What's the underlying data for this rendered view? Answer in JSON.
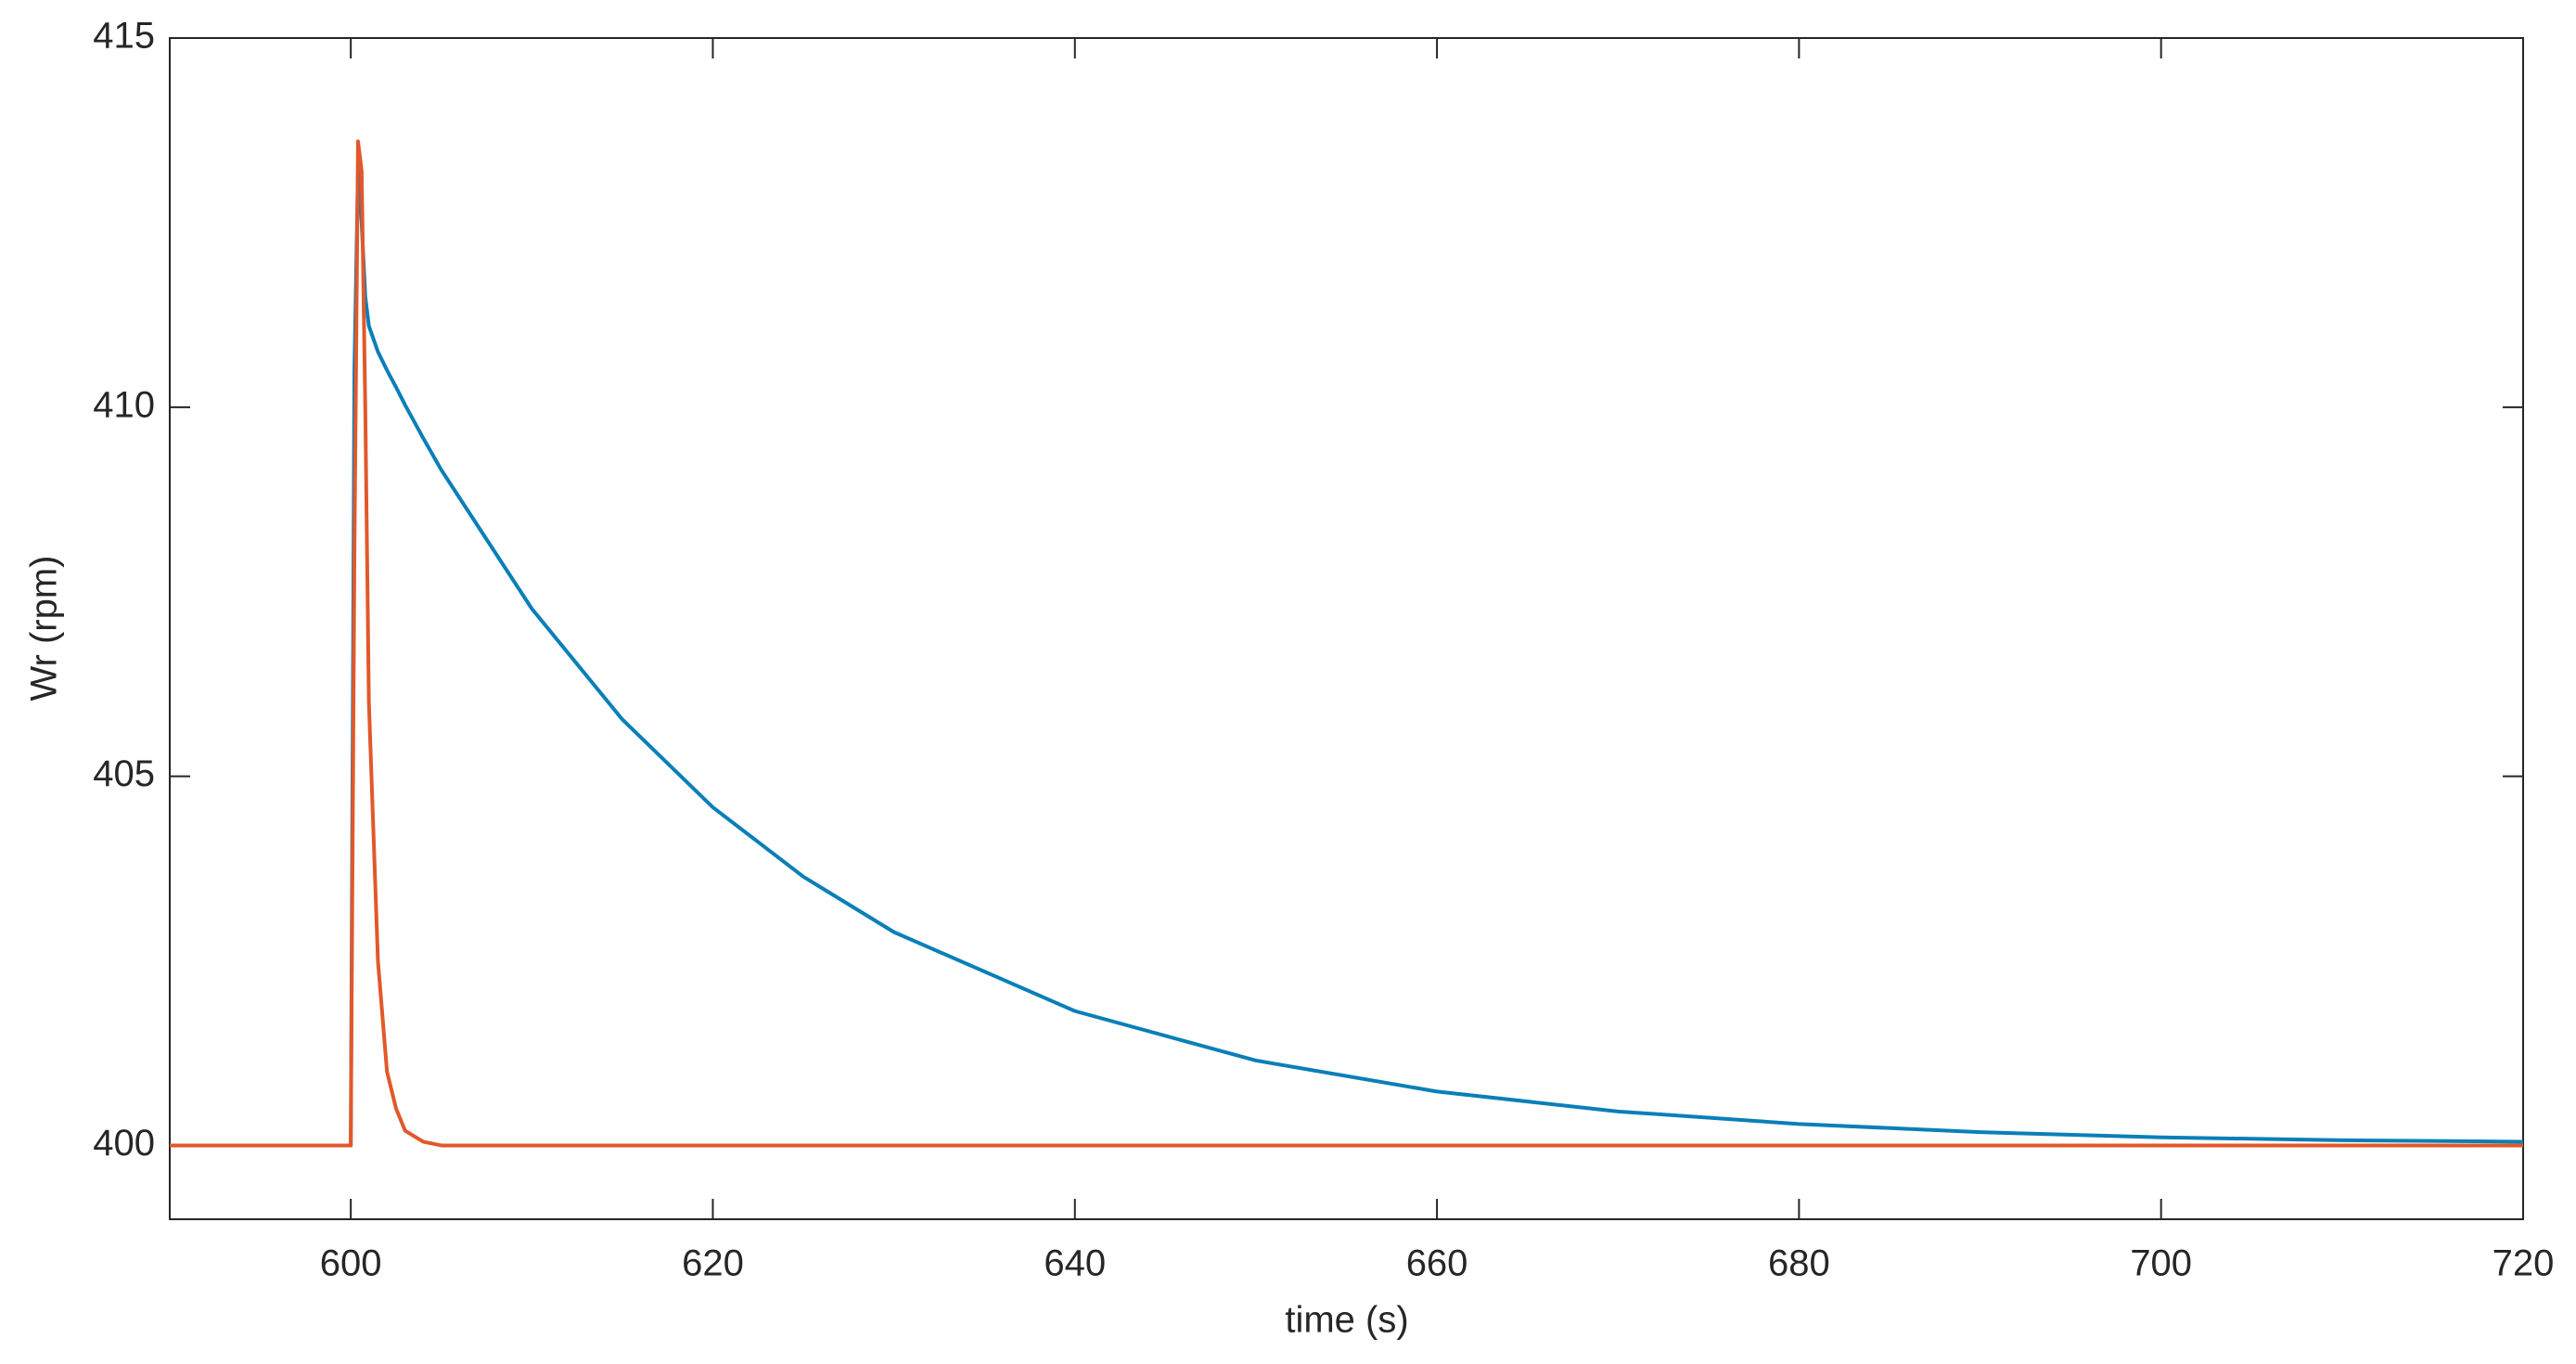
{
  "chart_data": {
    "type": "line",
    "xlabel": "time (s)",
    "ylabel": "Wr (rpm)",
    "x": [
      590,
      600,
      600.2,
      600.4,
      600.6,
      600.8,
      601,
      601.5,
      602,
      602.5,
      603,
      604,
      605,
      610,
      615,
      620,
      625,
      630,
      640,
      650,
      660,
      670,
      680,
      690,
      700,
      710,
      720
    ],
    "series": [
      {
        "color": "#0a7fb8",
        "values": [
          400,
          400,
          410.5,
          413.2,
          412.5,
          411.5,
          411.1,
          410.75,
          410.5,
          410.27,
          410.03,
          409.58,
          409.15,
          407.27,
          405.77,
          404.58,
          403.64,
          402.89,
          401.82,
          401.15,
          400.73,
          400.46,
          400.29,
          400.18,
          400.11,
          400.07,
          400.05
        ]
      },
      {
        "color": "#e2582a",
        "values": [
          400,
          400,
          408,
          413.6,
          413.2,
          410,
          406,
          402.5,
          401,
          400.5,
          400.2,
          400.05,
          400,
          400,
          400,
          400,
          400,
          400,
          400,
          400,
          400,
          400,
          400,
          400,
          400,
          400,
          400
        ]
      }
    ],
    "xlim": [
      590,
      720
    ],
    "xticks": [
      600,
      620,
      640,
      660,
      680,
      700,
      720
    ],
    "ylim": [
      399,
      415
    ],
    "yticks": [
      400,
      405,
      410,
      415
    ],
    "grid": false
  }
}
